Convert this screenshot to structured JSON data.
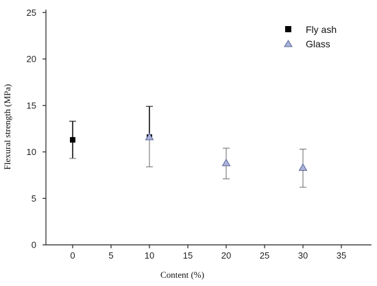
{
  "chart_data": {
    "type": "scatter",
    "xlabel": "Content (%)",
    "ylabel": "Flexural strength (MPa)",
    "xlim": [
      -5,
      38
    ],
    "ylim": [
      0,
      25
    ],
    "x_ticks": [
      0,
      5,
      10,
      15,
      20,
      25,
      30,
      35
    ],
    "y_ticks": [
      0,
      5,
      10,
      15,
      20,
      25
    ],
    "x_tick_labels": [
      "0",
      "5",
      "10",
      "15",
      "20",
      "25",
      "30",
      "35"
    ],
    "y_tick_labels": [
      "0",
      "5",
      "10",
      "15",
      "20",
      "25"
    ],
    "grid": false,
    "legend_position": "top-right",
    "series": [
      {
        "name": "Fly ash",
        "marker": "square",
        "color": "#000000",
        "points": [
          {
            "x": 0,
            "y": 11.3,
            "err_low": 9.3,
            "err_high": 13.3
          },
          {
            "x": 10,
            "y": 11.6,
            "err_low": 11.6,
            "err_high": 14.9
          }
        ]
      },
      {
        "name": "Glass",
        "marker": "triangle",
        "color": "#7a86b8",
        "points": [
          {
            "x": 10,
            "y": 11.6,
            "err_low": 8.4,
            "err_high": 11.6
          },
          {
            "x": 20,
            "y": 8.8,
            "err_low": 7.1,
            "err_high": 10.4
          },
          {
            "x": 30,
            "y": 8.3,
            "err_low": 6.2,
            "err_high": 10.3
          }
        ]
      }
    ]
  }
}
